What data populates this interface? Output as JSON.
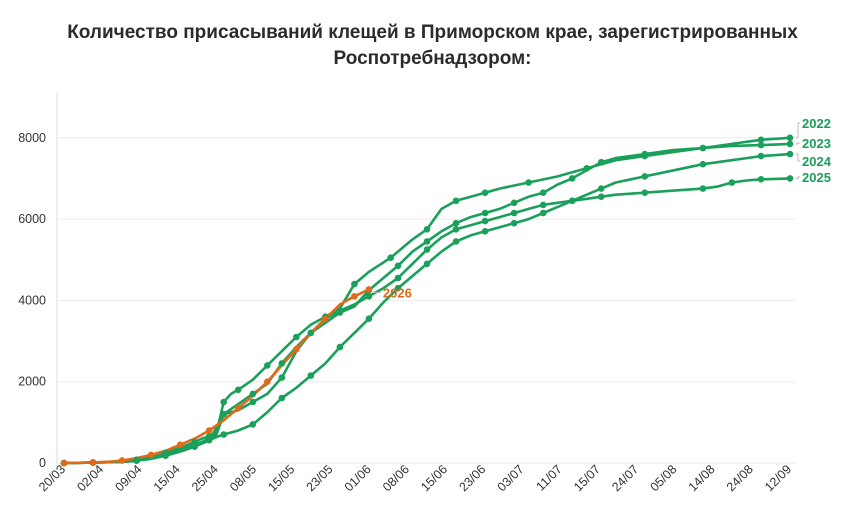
{
  "chart_data": {
    "type": "line",
    "title_lines": [
      "Количество присасываний клещей в Приморском крае, зарегистрированных",
      "Роспотребнадзором:"
    ],
    "xlabel": "",
    "ylabel": "",
    "x_ticks": [
      "20/03",
      "02/04",
      "09/04",
      "15/04",
      "25/04",
      "08/05",
      "15/05",
      "23/05",
      "01/06",
      "08/06",
      "15/06",
      "23/06",
      "03/07",
      "11/07",
      "15/07",
      "24/07",
      "05/08",
      "14/08",
      "24/08",
      "12/09"
    ],
    "y_ticks": [
      0,
      2000,
      4000,
      6000,
      8000
    ],
    "ylim": [
      0,
      9000
    ],
    "grid": true,
    "colors": {
      "green": "#1aa05a",
      "orange": "#e06a1b"
    },
    "series": [
      {
        "name": "2022",
        "color": "#1aa05a",
        "points": [
          [
            0,
            0
          ],
          [
            2,
            5
          ],
          [
            4,
            10
          ],
          [
            8,
            40
          ],
          [
            10,
            80
          ],
          [
            12,
            150
          ],
          [
            14,
            250
          ],
          [
            16,
            380
          ],
          [
            18,
            520
          ],
          [
            19,
            600
          ],
          [
            20,
            660
          ],
          [
            21,
            750
          ],
          [
            22,
            1500
          ],
          [
            23,
            1700
          ],
          [
            24,
            1800
          ],
          [
            26,
            2050
          ],
          [
            28,
            2400
          ],
          [
            30,
            2750
          ],
          [
            32,
            3100
          ],
          [
            34,
            3400
          ],
          [
            36,
            3600
          ],
          [
            38,
            3800
          ],
          [
            40,
            4400
          ],
          [
            42,
            4700
          ],
          [
            45,
            5050
          ],
          [
            48,
            5500
          ],
          [
            50,
            5750
          ],
          [
            52,
            6250
          ],
          [
            54,
            6450
          ],
          [
            56,
            6550
          ],
          [
            58,
            6650
          ],
          [
            60,
            6750
          ],
          [
            64,
            6900
          ],
          [
            68,
            7050
          ],
          [
            72,
            7250
          ],
          [
            76,
            7450
          ],
          [
            80,
            7550
          ],
          [
            84,
            7650
          ],
          [
            88,
            7750
          ],
          [
            92,
            7850
          ],
          [
            96,
            7950
          ],
          [
            100,
            8000
          ]
        ]
      },
      {
        "name": "2023",
        "color": "#1aa05a",
        "points": [
          [
            0,
            0
          ],
          [
            2,
            5
          ],
          [
            4,
            10
          ],
          [
            8,
            30
          ],
          [
            10,
            60
          ],
          [
            12,
            120
          ],
          [
            14,
            200
          ],
          [
            16,
            320
          ],
          [
            18,
            450
          ],
          [
            19,
            520
          ],
          [
            20,
            600
          ],
          [
            21,
            700
          ],
          [
            22,
            1200
          ],
          [
            24,
            1450
          ],
          [
            26,
            1700
          ],
          [
            28,
            1950
          ],
          [
            30,
            2450
          ],
          [
            32,
            2850
          ],
          [
            34,
            3200
          ],
          [
            36,
            3450
          ],
          [
            38,
            3700
          ],
          [
            40,
            3850
          ],
          [
            42,
            4250
          ],
          [
            44,
            4550
          ],
          [
            46,
            4850
          ],
          [
            48,
            5200
          ],
          [
            50,
            5450
          ],
          [
            52,
            5700
          ],
          [
            54,
            5900
          ],
          [
            56,
            6050
          ],
          [
            58,
            6150
          ],
          [
            60,
            6250
          ],
          [
            62,
            6400
          ],
          [
            64,
            6550
          ],
          [
            66,
            6650
          ],
          [
            68,
            6850
          ],
          [
            70,
            7000
          ],
          [
            72,
            7200
          ],
          [
            74,
            7400
          ],
          [
            76,
            7500
          ],
          [
            80,
            7600
          ],
          [
            84,
            7700
          ],
          [
            88,
            7750
          ],
          [
            92,
            7800
          ],
          [
            96,
            7820
          ],
          [
            100,
            7850
          ]
        ]
      },
      {
        "name": "2024",
        "color": "#1aa05a",
        "points": [
          [
            0,
            0
          ],
          [
            2,
            5
          ],
          [
            4,
            10
          ],
          [
            8,
            25
          ],
          [
            10,
            60
          ],
          [
            12,
            100
          ],
          [
            14,
            180
          ],
          [
            16,
            280
          ],
          [
            18,
            400
          ],
          [
            19,
            480
          ],
          [
            20,
            560
          ],
          [
            21,
            640
          ],
          [
            22,
            700
          ],
          [
            24,
            800
          ],
          [
            26,
            950
          ],
          [
            28,
            1250
          ],
          [
            30,
            1600
          ],
          [
            32,
            1850
          ],
          [
            34,
            2150
          ],
          [
            36,
            2450
          ],
          [
            38,
            2850
          ],
          [
            40,
            3200
          ],
          [
            42,
            3550
          ],
          [
            44,
            3950
          ],
          [
            46,
            4300
          ],
          [
            48,
            4600
          ],
          [
            50,
            4900
          ],
          [
            52,
            5200
          ],
          [
            54,
            5450
          ],
          [
            56,
            5600
          ],
          [
            58,
            5700
          ],
          [
            60,
            5800
          ],
          [
            62,
            5900
          ],
          [
            64,
            6000
          ],
          [
            66,
            6150
          ],
          [
            68,
            6300
          ],
          [
            70,
            6450
          ],
          [
            72,
            6600
          ],
          [
            74,
            6750
          ],
          [
            76,
            6900
          ],
          [
            80,
            7050
          ],
          [
            84,
            7200
          ],
          [
            88,
            7350
          ],
          [
            92,
            7450
          ],
          [
            96,
            7550
          ],
          [
            100,
            7600
          ]
        ]
      },
      {
        "name": "2025",
        "color": "#1aa05a",
        "points": [
          [
            0,
            0
          ],
          [
            2,
            5
          ],
          [
            4,
            10
          ],
          [
            8,
            30
          ],
          [
            10,
            60
          ],
          [
            12,
            110
          ],
          [
            14,
            190
          ],
          [
            16,
            300
          ],
          [
            18,
            420
          ],
          [
            20,
            550
          ],
          [
            22,
            1200
          ],
          [
            24,
            1300
          ],
          [
            26,
            1500
          ],
          [
            28,
            1700
          ],
          [
            30,
            2100
          ],
          [
            32,
            2750
          ],
          [
            34,
            3200
          ],
          [
            36,
            3550
          ],
          [
            38,
            3750
          ],
          [
            40,
            3900
          ],
          [
            42,
            4100
          ],
          [
            44,
            4300
          ],
          [
            46,
            4550
          ],
          [
            48,
            4900
          ],
          [
            50,
            5250
          ],
          [
            52,
            5550
          ],
          [
            54,
            5750
          ],
          [
            56,
            5850
          ],
          [
            58,
            5950
          ],
          [
            60,
            6050
          ],
          [
            62,
            6150
          ],
          [
            64,
            6250
          ],
          [
            66,
            6350
          ],
          [
            68,
            6400
          ],
          [
            70,
            6450
          ],
          [
            72,
            6500
          ],
          [
            74,
            6550
          ],
          [
            76,
            6600
          ],
          [
            80,
            6650
          ],
          [
            84,
            6700
          ],
          [
            88,
            6750
          ],
          [
            90,
            6800
          ],
          [
            92,
            6900
          ],
          [
            94,
            6950
          ],
          [
            96,
            6980
          ],
          [
            98,
            6990
          ],
          [
            100,
            7000
          ]
        ]
      },
      {
        "name": "2026",
        "color": "#e06a1b",
        "points": [
          [
            0,
            0
          ],
          [
            2,
            5
          ],
          [
            4,
            15
          ],
          [
            6,
            30
          ],
          [
            8,
            60
          ],
          [
            10,
            120
          ],
          [
            12,
            200
          ],
          [
            14,
            300
          ],
          [
            16,
            450
          ],
          [
            18,
            600
          ],
          [
            20,
            800
          ],
          [
            22,
            1050
          ],
          [
            24,
            1350
          ],
          [
            26,
            1650
          ],
          [
            28,
            2000
          ],
          [
            30,
            2400
          ],
          [
            32,
            2800
          ],
          [
            34,
            3200
          ],
          [
            36,
            3550
          ],
          [
            38,
            3900
          ],
          [
            40,
            4100
          ],
          [
            42,
            4270
          ]
        ]
      }
    ]
  }
}
